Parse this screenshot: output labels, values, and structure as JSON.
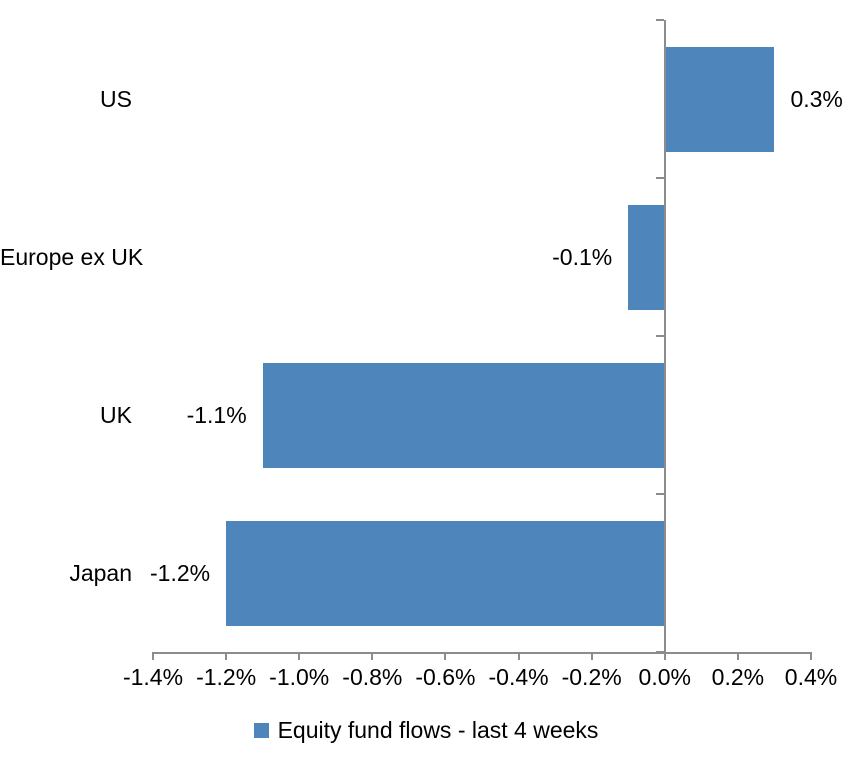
{
  "chart_data": {
    "type": "bar",
    "orientation": "horizontal",
    "title": "",
    "categories": [
      "US",
      "Europe ex UK",
      "UK",
      "Japan"
    ],
    "values": [
      0.3,
      -0.1,
      -1.1,
      -1.2
    ],
    "data_labels": [
      "0.3%",
      "-0.1%",
      "-1.1%",
      "-1.2%"
    ],
    "x_tick_labels": [
      "-1.4%",
      "-1.2%",
      "-1.0%",
      "-0.8%",
      "-0.6%",
      "-0.4%",
      "-0.2%",
      "0.0%",
      "0.2%",
      "0.4%"
    ],
    "x_tick_values": [
      -1.4,
      -1.2,
      -1.0,
      -0.8,
      -0.6,
      -0.4,
      -0.2,
      0.0,
      0.2,
      0.4
    ],
    "xlim": [
      -1.4,
      0.4
    ],
    "grid": false,
    "legend_position": "bottom-center",
    "legend": [
      {
        "label": "Equity fund flows - last 4 weeks",
        "color": "#4E86BC"
      }
    ],
    "colors": {
      "bar": "#4E86BC",
      "axis": "#8C8C8C",
      "text": "#000000",
      "background": "#FFFFFF"
    }
  }
}
